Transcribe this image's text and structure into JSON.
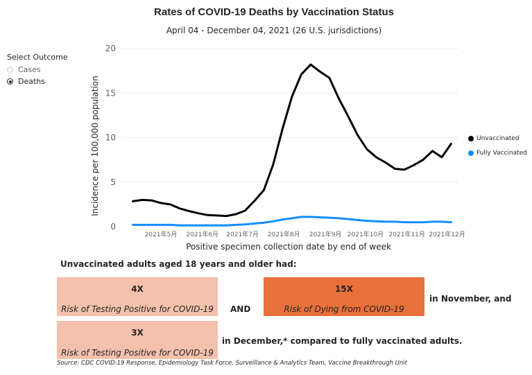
{
  "title": "Rates of COVID-19 Deaths by Vaccination Status",
  "subtitle": "April 04 - December 04, 2021 (26 U.S. jurisdictions)",
  "select_outcome": {
    "heading": "Select Outcome",
    "options": [
      {
        "label": "Cases",
        "checked": false
      },
      {
        "label": "Deaths",
        "checked": true
      }
    ]
  },
  "chart_data": {
    "type": "line",
    "xlabel": "Positive specimen collection date by end of week",
    "ylabel": "Incidence per 100,000 population",
    "ylim": [
      0,
      20
    ],
    "yticks": [
      0,
      5,
      10,
      15,
      20
    ],
    "xlim": [
      "2021-04-03",
      "2021-12-09"
    ],
    "xticks": [
      {
        "date": "2021-05-01",
        "label": "2021年5月"
      },
      {
        "date": "2021-06-01",
        "label": "2021年6月"
      },
      {
        "date": "2021-07-01",
        "label": "2021年7月"
      },
      {
        "date": "2021-08-01",
        "label": "2021年8月"
      },
      {
        "date": "2021-09-01",
        "label": "2021年9月"
      },
      {
        "date": "2021-10-01",
        "label": "2021年10月"
      },
      {
        "date": "2021-11-01",
        "label": "2021年11月"
      },
      {
        "date": "2021-12-01",
        "label": "2021年12月"
      }
    ],
    "grid": true,
    "legend_position": "right",
    "series": [
      {
        "name": "Unvaccinated",
        "color": "#000000",
        "points": [
          [
            "2021-04-10",
            2.85
          ],
          [
            "2021-04-17",
            3.0
          ],
          [
            "2021-04-24",
            2.95
          ],
          [
            "2021-05-01",
            2.65
          ],
          [
            "2021-05-08",
            2.5
          ],
          [
            "2021-05-15",
            2.05
          ],
          [
            "2021-05-22",
            1.75
          ],
          [
            "2021-05-29",
            1.5
          ],
          [
            "2021-06-05",
            1.3
          ],
          [
            "2021-06-12",
            1.25
          ],
          [
            "2021-06-19",
            1.2
          ],
          [
            "2021-06-26",
            1.4
          ],
          [
            "2021-07-03",
            1.8
          ],
          [
            "2021-07-10",
            2.9
          ],
          [
            "2021-07-17",
            4.1
          ],
          [
            "2021-07-24",
            7.0
          ],
          [
            "2021-07-31",
            11.0
          ],
          [
            "2021-08-07",
            14.6
          ],
          [
            "2021-08-14",
            17.1
          ],
          [
            "2021-08-21",
            18.2
          ],
          [
            "2021-08-28",
            17.4
          ],
          [
            "2021-09-04",
            16.7
          ],
          [
            "2021-09-11",
            14.4
          ],
          [
            "2021-09-18",
            12.4
          ],
          [
            "2021-09-25",
            10.3
          ],
          [
            "2021-10-02",
            8.7
          ],
          [
            "2021-10-09",
            7.8
          ],
          [
            "2021-10-16",
            7.2
          ],
          [
            "2021-10-23",
            6.5
          ],
          [
            "2021-10-30",
            6.4
          ],
          [
            "2021-11-06",
            6.9
          ],
          [
            "2021-11-13",
            7.5
          ],
          [
            "2021-11-20",
            8.5
          ],
          [
            "2021-11-27",
            7.8
          ],
          [
            "2021-12-04",
            9.3
          ]
        ]
      },
      {
        "name": "Fully Vaccinated",
        "color": "#118dff",
        "points": [
          [
            "2021-04-10",
            0.2
          ],
          [
            "2021-04-17",
            0.2
          ],
          [
            "2021-04-24",
            0.2
          ],
          [
            "2021-05-01",
            0.2
          ],
          [
            "2021-05-08",
            0.2
          ],
          [
            "2021-05-15",
            0.15
          ],
          [
            "2021-05-22",
            0.15
          ],
          [
            "2021-05-29",
            0.15
          ],
          [
            "2021-06-05",
            0.15
          ],
          [
            "2021-06-12",
            0.15
          ],
          [
            "2021-06-19",
            0.15
          ],
          [
            "2021-06-26",
            0.2
          ],
          [
            "2021-07-03",
            0.25
          ],
          [
            "2021-07-10",
            0.35
          ],
          [
            "2021-07-17",
            0.45
          ],
          [
            "2021-07-24",
            0.6
          ],
          [
            "2021-07-31",
            0.8
          ],
          [
            "2021-08-07",
            0.95
          ],
          [
            "2021-08-14",
            1.1
          ],
          [
            "2021-08-21",
            1.1
          ],
          [
            "2021-08-28",
            1.05
          ],
          [
            "2021-09-04",
            1.0
          ],
          [
            "2021-09-11",
            0.95
          ],
          [
            "2021-09-18",
            0.85
          ],
          [
            "2021-09-25",
            0.75
          ],
          [
            "2021-10-02",
            0.65
          ],
          [
            "2021-10-09",
            0.6
          ],
          [
            "2021-10-16",
            0.55
          ],
          [
            "2021-10-23",
            0.55
          ],
          [
            "2021-10-30",
            0.5
          ],
          [
            "2021-11-06",
            0.5
          ],
          [
            "2021-11-13",
            0.5
          ],
          [
            "2021-11-20",
            0.55
          ],
          [
            "2021-11-27",
            0.55
          ],
          [
            "2021-12-04",
            0.5
          ]
        ]
      }
    ]
  },
  "summary": {
    "headline": "Unvaccinated adults aged 18 years and older had:",
    "box1": {
      "multiplier": "4X",
      "text": "Risk of Testing Positive for COVID-19"
    },
    "and_text": "AND",
    "box2": {
      "multiplier": "15X",
      "text": "Risk of Dying from COVID-19"
    },
    "box2_suffix": "in November, and",
    "box3": {
      "multiplier": "3X",
      "text": "Risk of Testing Positive for COVID-19"
    },
    "box3_suffix": "in December,* compared to fully vaccinated adults.",
    "colors": {
      "light_box": "#f3c1ac",
      "dark_box": "#e8703a"
    }
  },
  "source": "Source: CDC COVID-19 Response, Epidemiology Task Force, Surveillance & Analytics Team, Vaccine Breakthrough Unit"
}
